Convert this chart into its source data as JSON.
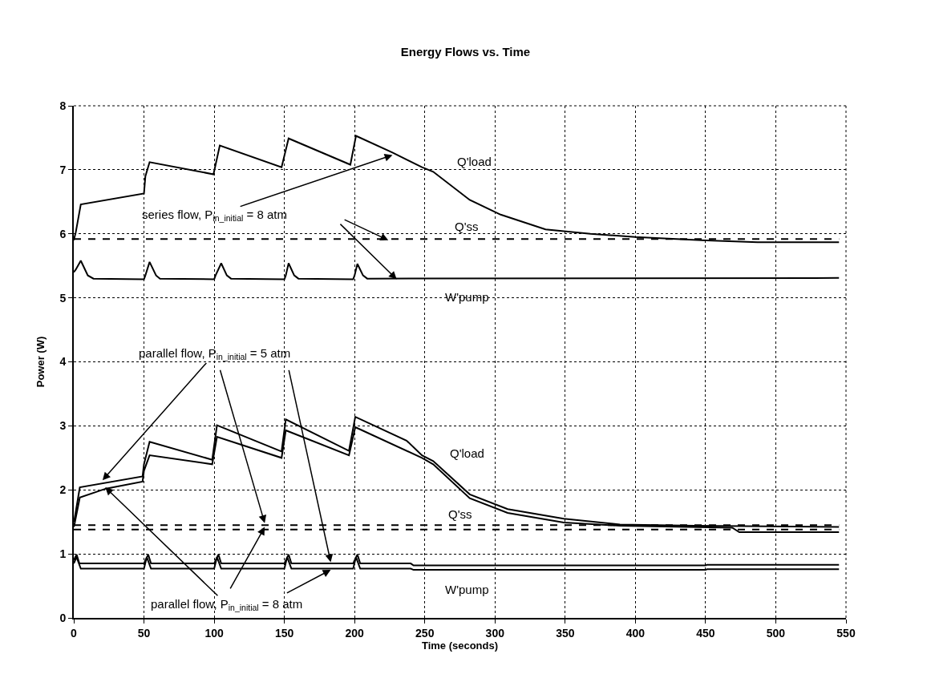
{
  "chart_data": {
    "type": "line",
    "title": "Energy Flows vs. Time",
    "xlabel": "Time (seconds)",
    "ylabel": "Power (W)",
    "xlim": [
      0,
      550
    ],
    "xticks": [
      0,
      50,
      100,
      150,
      200,
      250,
      300,
      350,
      400,
      450,
      500,
      550
    ],
    "ylim": [
      0,
      8
    ],
    "yticks": [
      0,
      1,
      2,
      3,
      4,
      5,
      6,
      7,
      8
    ],
    "grid": true,
    "marker": "none",
    "series": [
      {
        "color": "#000000",
        "line_style": "solid",
        "x": [
          0,
          1.4,
          5,
          50,
          51,
          54,
          99.5,
          104,
          148,
          153,
          197,
          201,
          227,
          248,
          256,
          282,
          304,
          336,
          368,
          400,
          447,
          487,
          545
        ],
        "values": [
          5.9,
          6.02,
          6.46,
          6.63,
          6.9,
          7.12,
          6.93,
          7.38,
          7.04,
          7.49,
          7.08,
          7.53,
          7.27,
          7.04,
          6.97,
          6.53,
          6.3,
          6.07,
          6.0,
          5.95,
          5.9,
          5.87,
          5.87
        ]
      },
      {
        "color": "#000000",
        "line_style": "dashed",
        "x": [
          0,
          545
        ],
        "values": [
          5.92,
          5.92
        ]
      },
      {
        "color": "#000000",
        "line_style": "solid",
        "x": [
          0,
          1.4,
          5,
          10,
          14,
          50,
          51,
          54,
          58.6,
          61.4,
          100,
          101,
          105,
          109,
          112,
          150,
          151,
          153,
          157,
          160,
          199,
          200,
          202,
          206,
          209,
          545
        ],
        "values": [
          5.4,
          5.44,
          5.58,
          5.35,
          5.3,
          5.29,
          5.35,
          5.56,
          5.35,
          5.3,
          5.29,
          5.35,
          5.54,
          5.35,
          5.3,
          5.29,
          5.35,
          5.54,
          5.35,
          5.3,
          5.29,
          5.35,
          5.53,
          5.35,
          5.3,
          5.31
        ]
      },
      {
        "color": "#000000",
        "line_style": "solid",
        "x": [
          0,
          0.5,
          4.3,
          49,
          50,
          54,
          98.6,
          102,
          148,
          151,
          196,
          200.5,
          237,
          248,
          256,
          282,
          309,
          349,
          389,
          442,
          545
        ],
        "values": [
          1.5,
          1.54,
          2.04,
          2.21,
          2.4,
          2.75,
          2.47,
          3.01,
          2.6,
          3.1,
          2.61,
          3.14,
          2.77,
          2.54,
          2.45,
          1.93,
          1.7,
          1.55,
          1.46,
          1.44,
          1.42
        ]
      },
      {
        "color": "#000000",
        "line_style": "solid",
        "x": [
          0,
          0.5,
          4.3,
          23,
          49,
          50,
          54,
          98.6,
          102,
          148,
          151,
          196,
          200.5,
          248,
          256,
          282,
          309,
          349,
          389,
          469,
          474,
          545
        ],
        "values": [
          1.42,
          1.46,
          1.88,
          2.02,
          2.13,
          2.3,
          2.54,
          2.4,
          2.83,
          2.5,
          2.93,
          2.54,
          2.98,
          2.5,
          2.4,
          1.87,
          1.64,
          1.49,
          1.44,
          1.41,
          1.34,
          1.34
        ]
      },
      {
        "color": "#000000",
        "line_style": "dashed",
        "x": [
          0,
          545
        ],
        "values": [
          1.45,
          1.45
        ]
      },
      {
        "color": "#000000",
        "line_style": "dashed",
        "x": [
          0,
          545
        ],
        "values": [
          1.38,
          1.38
        ]
      },
      {
        "color": "#000000",
        "line_style": "solid",
        "x": [
          0,
          2,
          4,
          50,
          51,
          53,
          55,
          100,
          101,
          103,
          105,
          150,
          151,
          153,
          155,
          199,
          200,
          202,
          204,
          240,
          242,
          450,
          451,
          545
        ],
        "values": [
          0.9,
          0.99,
          0.85,
          0.85,
          0.9,
          0.99,
          0.85,
          0.85,
          0.9,
          0.99,
          0.85,
          0.85,
          0.9,
          0.99,
          0.85,
          0.85,
          0.9,
          0.99,
          0.85,
          0.85,
          0.82,
          0.82,
          0.83,
          0.83
        ]
      },
      {
        "color": "#000000",
        "line_style": "solid",
        "x": [
          0,
          2,
          5,
          50,
          52,
          55,
          100,
          102,
          105,
          150,
          152,
          155,
          199,
          201,
          204,
          240,
          242,
          450,
          451,
          545
        ],
        "values": [
          0.85,
          0.95,
          0.77,
          0.77,
          0.95,
          0.77,
          0.77,
          0.95,
          0.77,
          0.77,
          0.95,
          0.77,
          0.77,
          0.95,
          0.77,
          0.77,
          0.75,
          0.75,
          0.76,
          0.76
        ]
      }
    ],
    "annotations": [
      "Q'load",
      "Q'ss",
      "W'pump",
      "Q'load",
      "Q'ss",
      "W'pump",
      {
        "text": "series flow, P$_{in_initial}$ = 8 atm",
        "x": 227,
        "y": 7.23
      },
      {
        "text": "parallel flow, P$_{in_initial}$ = 5 atm",
        "x": 20.5,
        "y": 2.15
      },
      {
        "text": "parallel flow, P$_{in_initial}$ = 8 atm",
        "x": 22.4,
        "y": 2.04
      }
    ]
  }
}
